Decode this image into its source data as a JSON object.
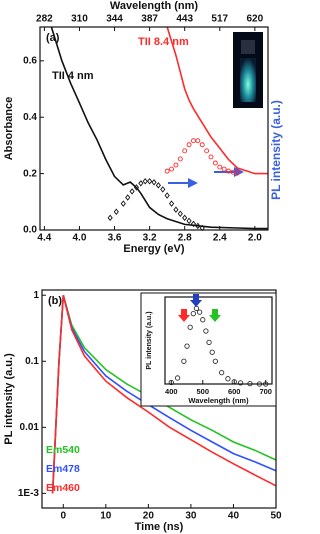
{
  "chart_data": [
    {
      "type": "line",
      "panel_label": "(a)",
      "xlabel": "Energy (eV)",
      "ylabel": "Absorbance",
      "y2label": "PL intensity (a.u.)",
      "x2label": "Wavelength (nm)",
      "xlim": [
        4.45,
        1.85
      ],
      "ylim": [
        0,
        0.72
      ],
      "y2lim": [
        0,
        1
      ],
      "xticks": [
        4.4,
        {
          "value": 4,
          "label": "4.0"
        },
        3.6,
        3.2,
        2.8,
        2.4,
        {
          "value": 2,
          "label": "2.0"
        }
      ],
      "x2ticks": [
        {
          "value": 4.4,
          "label": "282"
        },
        {
          "value": 4,
          "label": "310"
        },
        {
          "value": 3.6,
          "label": "344"
        },
        {
          "value": 3.2,
          "label": "387"
        },
        {
          "value": 2.8,
          "label": "443"
        },
        {
          "value": 2.4,
          "label": "517"
        },
        {
          "value": 2,
          "label": "620"
        }
      ],
      "yticks": [
        {
          "value": 0,
          "label": "0.0"
        },
        0.2,
        0.4,
        0.6
      ],
      "series": [
        {
          "name": "TII 4 nm",
          "color": "#111111",
          "x": [
            4.32,
            4.2,
            4.1,
            4.0,
            3.9,
            3.8,
            3.7,
            3.6,
            3.5,
            3.42,
            3.35,
            3.3,
            3.2,
            3.1,
            3.0,
            2.8,
            2.5,
            2.2,
            2.0,
            1.85
          ],
          "values": [
            0.72,
            0.6,
            0.52,
            0.45,
            0.38,
            0.32,
            0.25,
            0.19,
            0.16,
            0.17,
            0.15,
            0.13,
            0.08,
            0.055,
            0.04,
            0.02,
            0.01,
            0.007,
            0.005,
            0.005
          ]
        },
        {
          "name": "TII 8.4 nm",
          "color": "#ff2a2a",
          "x": [
            3.0,
            2.95,
            2.9,
            2.85,
            2.8,
            2.75,
            2.7,
            2.6,
            2.5,
            2.4,
            2.3,
            2.2,
            2.1,
            2.0,
            1.85
          ],
          "values": [
            0.72,
            0.67,
            0.62,
            0.56,
            0.5,
            0.46,
            0.43,
            0.38,
            0.33,
            0.29,
            0.25,
            0.22,
            0.21,
            0.2,
            0.2
          ]
        },
        {
          "color": "#111111",
          "marker": "diamond",
          "axis": "y2",
          "x": [
            3.65,
            3.58,
            3.5,
            3.45,
            3.4,
            3.35,
            3.3,
            3.25,
            3.2,
            3.15,
            3.1,
            3.05,
            3.0,
            2.95,
            2.9,
            2.85,
            2.8,
            2.75,
            2.7,
            2.65,
            2.6
          ],
          "values": [
            0.06,
            0.09,
            0.13,
            0.16,
            0.19,
            0.21,
            0.23,
            0.24,
            0.24,
            0.235,
            0.22,
            0.2,
            0.17,
            0.13,
            0.1,
            0.08,
            0.06,
            0.045,
            0.03,
            0.02,
            0.01
          ]
        },
        {
          "color": "#ff2a2a",
          "marker": "circle",
          "axis": "y2",
          "x": [
            3.0,
            2.95,
            2.9,
            2.85,
            2.8,
            2.75,
            2.7,
            2.65,
            2.6,
            2.55,
            2.5,
            2.45,
            2.4,
            2.35,
            2.3,
            2.25,
            2.2
          ],
          "values": [
            0.29,
            0.3,
            0.32,
            0.35,
            0.39,
            0.42,
            0.44,
            0.44,
            0.42,
            0.39,
            0.36,
            0.33,
            0.31,
            0.3,
            0.29,
            0.285,
            0.28
          ]
        }
      ]
    },
    {
      "type": "line",
      "panel_label": "(b)",
      "xlabel": "Time (ns)",
      "ylabel": "PL intensity (a.u.)",
      "log_y": true,
      "xlim": [
        -5,
        50
      ],
      "ylim": [
        0.0006,
        1.2
      ],
      "xticks": [
        0,
        10,
        20,
        30,
        40,
        50
      ],
      "yticks": [
        {
          "value": 0.001,
          "label": "1E-3"
        },
        0.01,
        0.1,
        1
      ],
      "series": [
        {
          "name": "Em540",
          "color": "#22c322",
          "x": [
            -2.5,
            -1,
            0,
            2,
            5,
            10,
            15,
            20,
            25,
            30,
            35,
            40,
            45,
            50
          ],
          "values": [
            0.001,
            0.1,
            1,
            0.35,
            0.16,
            0.075,
            0.045,
            0.03,
            0.02,
            0.013,
            0.009,
            0.006,
            0.0045,
            0.0032
          ]
        },
        {
          "name": "Em478",
          "color": "#3050ff",
          "x": [
            -2.5,
            -1,
            0,
            2,
            5,
            10,
            15,
            20,
            25,
            30,
            35,
            40,
            45,
            50
          ],
          "values": [
            0.001,
            0.1,
            1,
            0.32,
            0.14,
            0.06,
            0.035,
            0.022,
            0.014,
            0.009,
            0.006,
            0.004,
            0.003,
            0.0022
          ]
        },
        {
          "name": "Em460",
          "color": "#ff2a2a",
          "x": [
            -2.5,
            -1,
            0,
            2,
            5,
            10,
            15,
            20,
            25,
            30,
            35,
            40,
            45,
            50
          ],
          "values": [
            0.001,
            0.1,
            1,
            0.3,
            0.12,
            0.05,
            0.028,
            0.017,
            0.01,
            0.0065,
            0.0042,
            0.0028,
            0.0019,
            0.0013
          ]
        }
      ]
    },
    {
      "type": "line",
      "xlabel": "Wavelength (nm)",
      "ylabel": "PL intensity (a.u.)",
      "xlim": [
        380,
        720
      ],
      "ylim": [
        0,
        1.15
      ],
      "xticks": [
        400,
        500,
        600,
        700
      ],
      "series": [
        {
          "color": "#333333",
          "marker": "circle",
          "x": [
            400,
            420,
            440,
            450,
            460,
            470,
            480,
            490,
            500,
            510,
            520,
            530,
            540,
            560,
            580,
            600,
            620,
            650,
            680,
            700
          ],
          "values": [
            0.02,
            0.08,
            0.3,
            0.5,
            0.75,
            0.93,
            1,
            0.95,
            0.85,
            0.7,
            0.55,
            0.42,
            0.3,
            0.15,
            0.07,
            0.03,
            0.015,
            0.005,
            0,
            0
          ]
        }
      ]
    }
  ]
}
